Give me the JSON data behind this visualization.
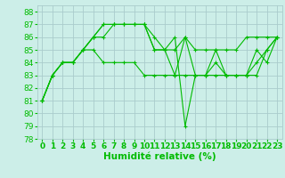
{
  "background_color": "#cceee8",
  "grid_color": "#aacccc",
  "line_color": "#00bb00",
  "xlabel": "Humidité relative (%)",
  "xlabel_fontsize": 7.5,
  "tick_fontsize": 6.5,
  "xlim": [
    -0.5,
    23.5
  ],
  "ylim": [
    78,
    88.5
  ],
  "yticks": [
    78,
    79,
    80,
    81,
    82,
    83,
    84,
    85,
    86,
    87,
    88
  ],
  "xticks": [
    0,
    1,
    2,
    3,
    4,
    5,
    6,
    7,
    8,
    9,
    10,
    11,
    12,
    13,
    14,
    15,
    16,
    17,
    18,
    19,
    20,
    21,
    22,
    23
  ],
  "series": [
    [
      81,
      83,
      84,
      84,
      85,
      86,
      87,
      87,
      87,
      87,
      87,
      86,
      85,
      85,
      86,
      85,
      85,
      85,
      85,
      85,
      86,
      86,
      86,
      86
    ],
    [
      81,
      83,
      84,
      84,
      85,
      85,
      84,
      84,
      84,
      84,
      83,
      83,
      83,
      83,
      83,
      83,
      83,
      83,
      83,
      83,
      83,
      83,
      85,
      86
    ],
    [
      81,
      83,
      84,
      84,
      85,
      86,
      87,
      87,
      87,
      87,
      87,
      85,
      85,
      83,
      86,
      83,
      83,
      85,
      83,
      83,
      83,
      84,
      85,
      86
    ],
    [
      81,
      83,
      84,
      84,
      85,
      86,
      86,
      87,
      87,
      87,
      87,
      85,
      85,
      86,
      79,
      83,
      83,
      84,
      83,
      83,
      83,
      85,
      84,
      86
    ]
  ],
  "marker": "+"
}
